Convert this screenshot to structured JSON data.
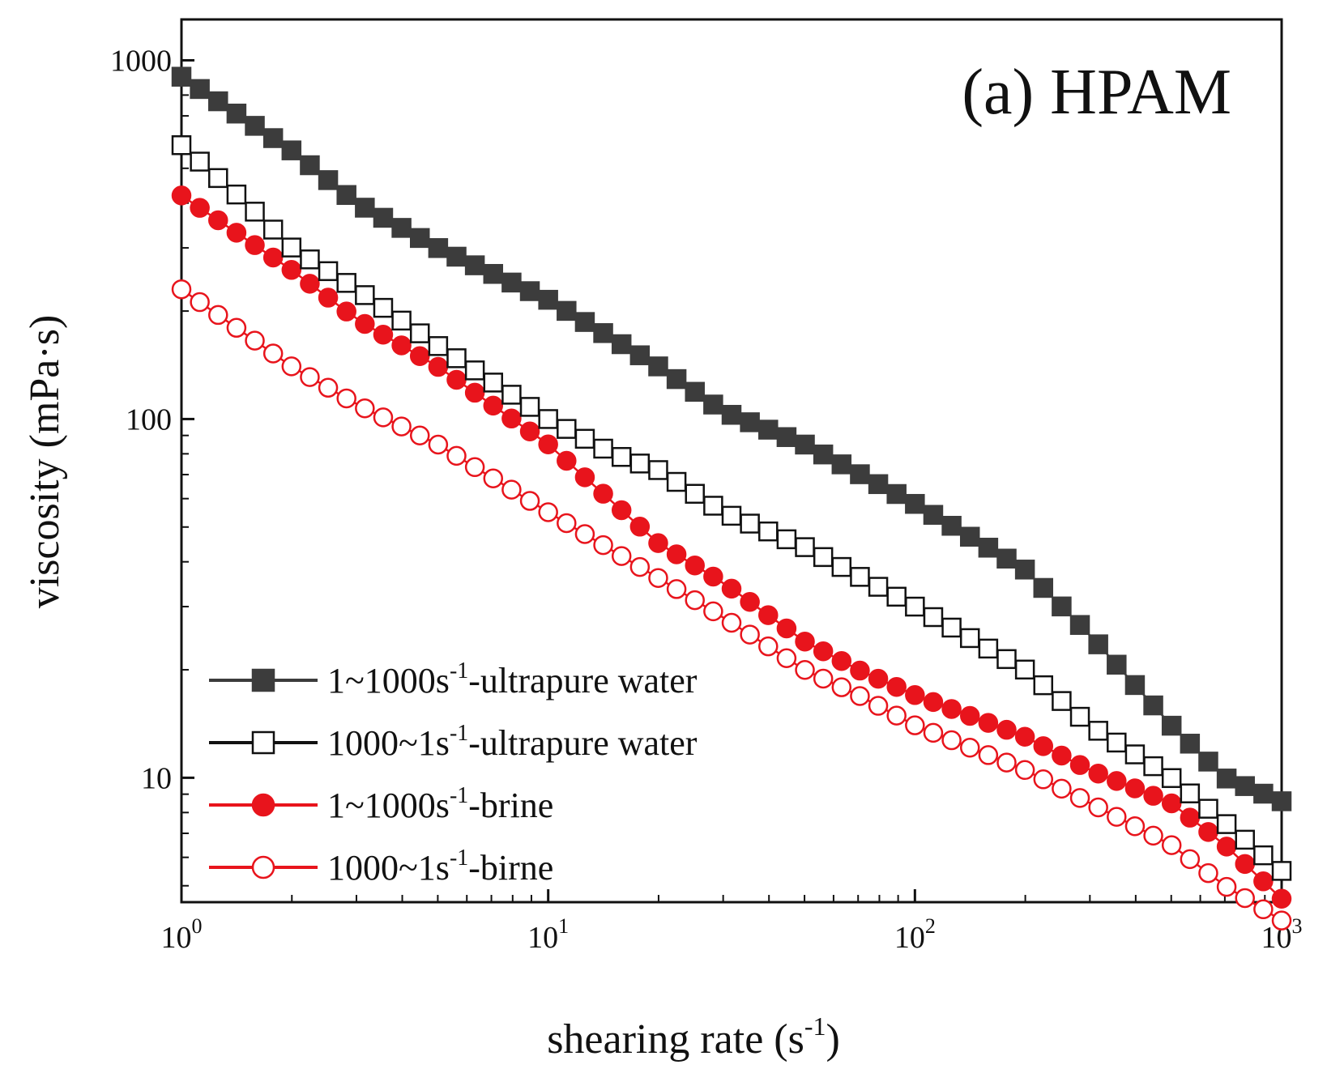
{
  "chart_data": {
    "type": "line",
    "title": "(a) HPAM",
    "xlabel": "shearing rate (s",
    "xlabel_sup": "-1",
    "xlabel_end": ")",
    "ylabel": "viscosity (mPa·s)",
    "xscale": "log",
    "yscale": "log",
    "xlim": [
      1,
      1000
    ],
    "ylim": [
      4.5,
      1300
    ],
    "x_ticks": [
      {
        "value": 1,
        "base": "10",
        "exp": "0"
      },
      {
        "value": 10,
        "base": "10",
        "exp": "1"
      },
      {
        "value": 100,
        "base": "10",
        "exp": "2"
      },
      {
        "value": 1000,
        "base": "10",
        "exp": "3"
      }
    ],
    "y_ticks": [
      {
        "value": 10,
        "label": "10"
      },
      {
        "value": 100,
        "label": "100"
      },
      {
        "value": 1000,
        "label": "1000"
      }
    ],
    "legend_position": "bottom-left",
    "series": [
      {
        "name_prefix": "1~1000s",
        "name_sup": "-1",
        "name_suffix": "-ultrapure water",
        "color": "#3c3c3c",
        "marker": "square",
        "filled": true,
        "anchors": [
          [
            1,
            900
          ],
          [
            2,
            560
          ],
          [
            3,
            400
          ],
          [
            5,
            300
          ],
          [
            10,
            215
          ],
          [
            20,
            140
          ],
          [
            30,
            105
          ],
          [
            50,
            85
          ],
          [
            100,
            58
          ],
          [
            200,
            38
          ],
          [
            300,
            25
          ],
          [
            500,
            14
          ],
          [
            700,
            10
          ],
          [
            1000,
            8.6
          ]
        ]
      },
      {
        "name_prefix": "1000~1s",
        "name_sup": "-1",
        "name_suffix": "-ultrapure water",
        "color": "#111111",
        "marker": "square",
        "filled": false,
        "anchors": [
          [
            1,
            580
          ],
          [
            1.5,
            400
          ],
          [
            2,
            300
          ],
          [
            3,
            230
          ],
          [
            5,
            160
          ],
          [
            10,
            100
          ],
          [
            15,
            80
          ],
          [
            20,
            72
          ],
          [
            30,
            55
          ],
          [
            50,
            44
          ],
          [
            100,
            30
          ],
          [
            200,
            20
          ],
          [
            300,
            14
          ],
          [
            500,
            10
          ],
          [
            700,
            7.5
          ],
          [
            1000,
            5.5
          ]
        ]
      },
      {
        "name_prefix": "1~1000s",
        "name_sup": "-1",
        "name_suffix": "-brine",
        "color": "#e8141c",
        "marker": "circle",
        "filled": true,
        "anchors": [
          [
            1,
            420
          ],
          [
            2,
            260
          ],
          [
            3,
            190
          ],
          [
            5,
            140
          ],
          [
            10,
            85
          ],
          [
            20,
            45
          ],
          [
            30,
            35
          ],
          [
            50,
            24
          ],
          [
            70,
            20
          ],
          [
            100,
            17
          ],
          [
            200,
            13
          ],
          [
            300,
            10.5
          ],
          [
            500,
            8.5
          ],
          [
            700,
            6.5
          ],
          [
            1000,
            4.6
          ]
        ]
      },
      {
        "name_prefix": "1000~1s",
        "name_sup": "-1",
        "name_suffix": "-birne",
        "color": "#e8141c",
        "marker": "circle",
        "filled": false,
        "anchors": [
          [
            1,
            230
          ],
          [
            2,
            140
          ],
          [
            3,
            110
          ],
          [
            5,
            85
          ],
          [
            10,
            55
          ],
          [
            20,
            36
          ],
          [
            30,
            28
          ],
          [
            50,
            20
          ],
          [
            70,
            17
          ],
          [
            100,
            14
          ],
          [
            200,
            10.5
          ],
          [
            300,
            8.5
          ],
          [
            500,
            6.5
          ],
          [
            700,
            5
          ],
          [
            1000,
            4.0
          ]
        ]
      }
    ]
  }
}
